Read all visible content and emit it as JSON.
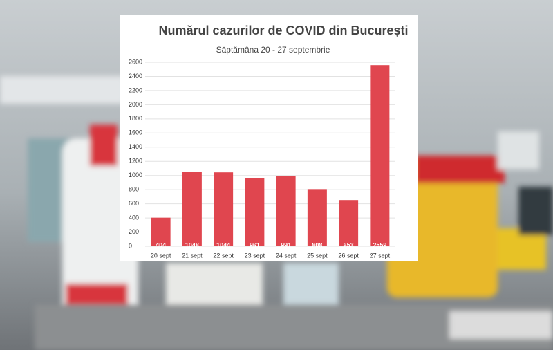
{
  "chart_data": {
    "type": "bar",
    "title": "Numărul cazurilor de COVID din București",
    "subtitle": "Săptămâna 20 - 27 septembrie",
    "categories": [
      "20 sept",
      "21 sept",
      "22 sept",
      "23 sept",
      "24 sept",
      "25 sept",
      "26 sept",
      "27 sept"
    ],
    "values": [
      404,
      1048,
      1044,
      961,
      991,
      808,
      653,
      2559
    ],
    "color": "#e0464f",
    "ylim": [
      0,
      2600
    ],
    "yticks": [
      0,
      200,
      400,
      600,
      800,
      1000,
      1200,
      1400,
      1600,
      1800,
      2000,
      2200,
      2400,
      2600
    ],
    "grid": true
  }
}
